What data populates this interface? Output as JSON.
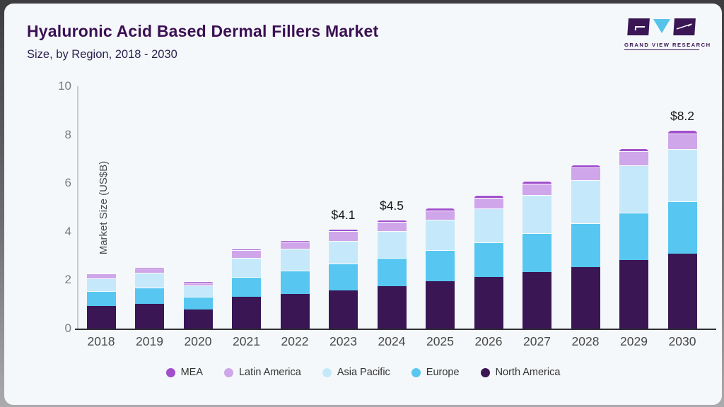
{
  "header": {
    "title": "Hyaluronic Acid Based Dermal Fillers Market",
    "subtitle": "Size, by Region, 2018 - 2030"
  },
  "logo": {
    "brand": "GVR",
    "text": "GRAND VIEW RESEARCH",
    "block_color": "#3a1655",
    "triangle_color": "#56c3ea"
  },
  "chart_data": {
    "type": "bar",
    "stacked": true,
    "title": "Hyaluronic Acid Based Dermal Fillers Market",
    "subtitle": "Size, by Region, 2018 - 2030",
    "xlabel": "",
    "ylabel": "Market Size (US$B)",
    "ylim": [
      0,
      10
    ],
    "y_ticks": [
      0,
      2,
      4,
      6,
      8,
      10
    ],
    "grid": false,
    "legend_position": "bottom",
    "categories": [
      "2018",
      "2019",
      "2020",
      "2021",
      "2022",
      "2023",
      "2024",
      "2025",
      "2026",
      "2027",
      "2028",
      "2029",
      "2030"
    ],
    "series": [
      {
        "name": "North America",
        "color": "#3a1655",
        "values": [
          0.92,
          1.03,
          0.8,
          1.31,
          1.44,
          1.58,
          1.75,
          1.94,
          2.12,
          2.32,
          2.55,
          2.83,
          3.1
        ]
      },
      {
        "name": "Europe",
        "color": "#57c7f1",
        "values": [
          0.62,
          0.67,
          0.5,
          0.82,
          0.95,
          1.1,
          1.18,
          1.31,
          1.45,
          1.62,
          1.8,
          1.95,
          2.15
        ]
      },
      {
        "name": "Asia Pacific",
        "color": "#c5e9fa",
        "values": [
          0.52,
          0.59,
          0.48,
          0.8,
          0.9,
          0.95,
          1.1,
          1.23,
          1.38,
          1.57,
          1.78,
          1.95,
          2.17
        ]
      },
      {
        "name": "Latin America",
        "color": "#d0a6ea",
        "values": [
          0.2,
          0.18,
          0.13,
          0.3,
          0.29,
          0.39,
          0.38,
          0.4,
          0.43,
          0.48,
          0.52,
          0.58,
          0.62
        ]
      },
      {
        "name": "MEA",
        "color": "#a14fcc",
        "values": [
          0.05,
          0.08,
          0.04,
          0.07,
          0.07,
          0.08,
          0.09,
          0.12,
          0.12,
          0.11,
          0.1,
          0.12,
          0.16
        ]
      }
    ],
    "totals": [
      2.31,
      2.55,
      1.95,
      3.3,
      3.65,
      4.1,
      4.5,
      5.0,
      5.5,
      6.1,
      6.75,
      7.43,
      8.2
    ],
    "value_labels": {
      "2023": "$4.1",
      "2024": "$4.5",
      "2030": "$8.2"
    },
    "legend": [
      "MEA",
      "Latin America",
      "Asia Pacific",
      "Europe",
      "North America"
    ]
  }
}
